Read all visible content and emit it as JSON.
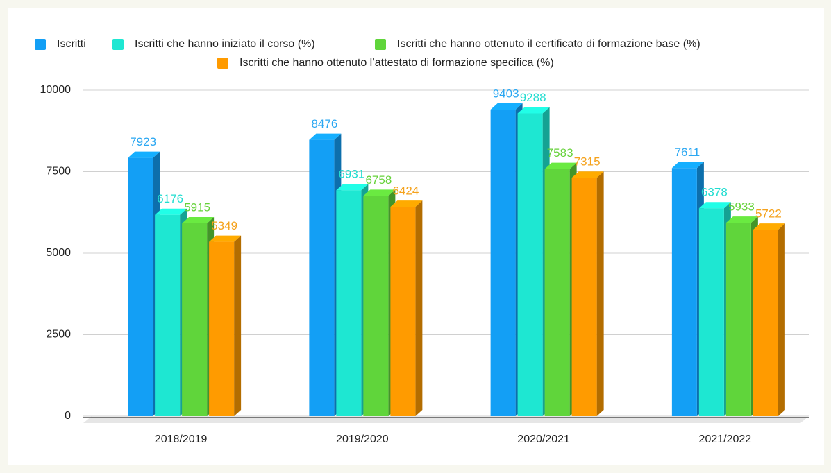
{
  "chart_data": {
    "type": "bar3d",
    "categories": [
      "2018/2019",
      "2019/2020",
      "2020/2021",
      "2021/2022"
    ],
    "series": [
      {
        "name": "Iscritti",
        "color": "#139ff5",
        "label_color": "#2aa7f2",
        "values": [
          7923,
          8476,
          9403,
          7611
        ]
      },
      {
        "name": "Iscritti che hanno iniziato il corso (%)",
        "color": "#1ee7d2",
        "label_color": "#22ddd0",
        "values": [
          6176,
          6931,
          9288,
          6378
        ]
      },
      {
        "name": "Iscritti che hanno ottenuto il certificato di formazione base (%)",
        "color": "#60d53b",
        "label_color": "#66d23a",
        "values": [
          5915,
          6758,
          7583,
          5933
        ]
      },
      {
        "name": "Iscritti che hanno ottenuto l’attestato di formazione specifica (%)",
        "color": "#ff9b00",
        "label_color": "#f5a21c",
        "values": [
          5349,
          6424,
          7315,
          5722
        ]
      }
    ],
    "ylim": [
      0,
      10000
    ],
    "yticks": [
      0,
      2500,
      5000,
      7500,
      10000
    ],
    "grid": true
  }
}
